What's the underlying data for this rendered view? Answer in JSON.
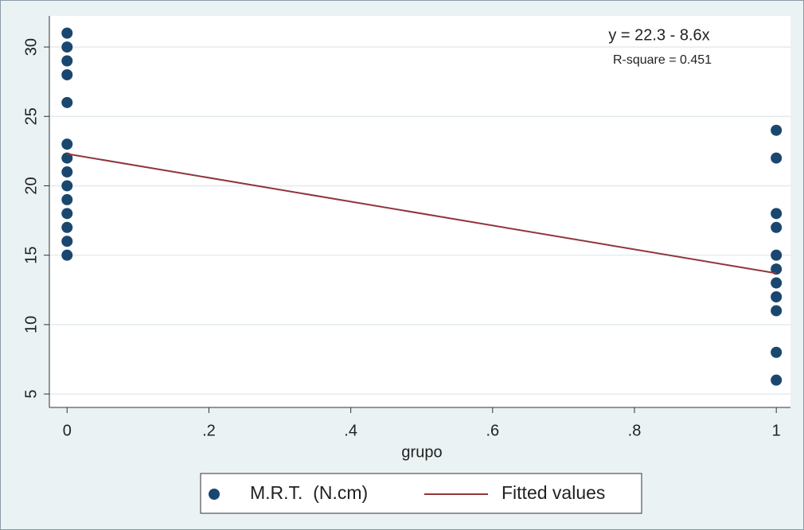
{
  "chart_data": {
    "type": "scatter",
    "annotations": [
      "y = 22.3 - 8.6x",
      "R-square = 0.451"
    ],
    "x_label": "grupo",
    "xlim": [
      -0.025,
      1.02
    ],
    "ylim": [
      4.03,
      32.24
    ],
    "xticks": [
      0,
      {
        "value": 0.2,
        "label": ".2"
      },
      {
        "value": 0.4,
        "label": ".4"
      },
      {
        "value": 0.6,
        "label": ".6"
      },
      {
        "value": 0.8,
        "label": ".8"
      },
      1
    ],
    "yticks": [
      5,
      10,
      15,
      20,
      25,
      30
    ],
    "grid": true,
    "legend": "bottom",
    "series": [
      {
        "name": "M.R.T.  (N.cm)",
        "type": "scatter",
        "color": "#1a476f",
        "x": [
          0,
          0,
          0,
          0,
          0,
          0,
          0,
          0,
          0,
          0,
          0,
          0,
          0,
          0,
          1,
          1,
          1,
          1,
          1,
          1,
          1,
          1,
          1,
          1,
          1
        ],
        "values": [
          31,
          30,
          29,
          28,
          26,
          23,
          22,
          21,
          20,
          19,
          18,
          17,
          16,
          15,
          24,
          22,
          18,
          17,
          15,
          14,
          13,
          12,
          11,
          8,
          6
        ]
      },
      {
        "name": "Fitted values",
        "type": "line",
        "color": "#90353b",
        "x": [
          0,
          1
        ],
        "values": [
          22.3,
          13.7
        ]
      }
    ]
  }
}
